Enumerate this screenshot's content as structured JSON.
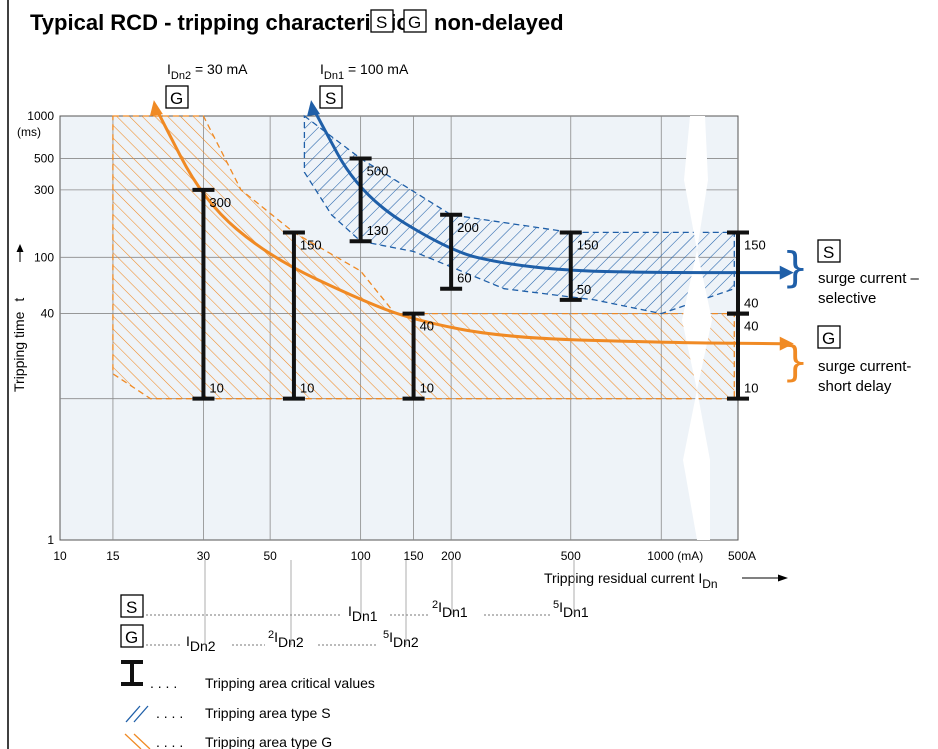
{
  "title": "Typical RCD - tripping characteristic",
  "title_boxes": [
    "S",
    "G"
  ],
  "title_suffix": "non-delayed",
  "colors": {
    "type_s": "#1f5fa8",
    "type_g": "#f08a24",
    "plot_bg": "#eef3f8",
    "bar": "#111111"
  },
  "chart_data": {
    "type": "line",
    "xlabel": "Tripping residual current I",
    "xlabel_sub": "Dn",
    "ylabel": "Tripping time",
    "ylabel_var": "t",
    "x_scale": "log",
    "y_scale": "log",
    "xlim": [
      10,
      1800
    ],
    "ylim": [
      1,
      1000
    ],
    "x_ticks": [
      {
        "v": 10,
        "label": "10"
      },
      {
        "v": 15,
        "label": "15"
      },
      {
        "v": 30,
        "label": "30"
      },
      {
        "v": 50,
        "label": "50"
      },
      {
        "v": 100,
        "label": "100"
      },
      {
        "v": 150,
        "label": "150"
      },
      {
        "v": 200,
        "label": "200"
      },
      {
        "v": 500,
        "label": "500"
      },
      {
        "v": 1000,
        "label": "1000 (mA)"
      },
      {
        "v": 1800,
        "label": "500A"
      }
    ],
    "y_ticks": [
      {
        "v": 1,
        "label": "1"
      },
      {
        "v": 10,
        "label": ""
      },
      {
        "v": 40,
        "label": "40"
      },
      {
        "v": 100,
        "label": "100"
      },
      {
        "v": 300,
        "label": "300"
      },
      {
        "v": 500,
        "label": "500"
      },
      {
        "v": 1000,
        "label": "1000"
      }
    ],
    "y_unit_label": "(ms)",
    "curves": [
      {
        "name": "I",
        "sub": "Dn2",
        "value_label": " = 30 mA",
        "box": "G",
        "color": "#f08a24",
        "points": [
          [
            21,
            1100
          ],
          [
            30,
            250
          ],
          [
            50,
            100
          ],
          [
            100,
            50
          ],
          [
            150,
            36
          ],
          [
            300,
            27
          ],
          [
            1000,
            25
          ],
          [
            2000,
            24.5
          ]
        ]
      },
      {
        "name": "I",
        "sub": "Dn1",
        "value_label": " = 100 mA",
        "box": "S",
        "color": "#1f5fa8",
        "points": [
          [
            70,
            1100
          ],
          [
            100,
            270
          ],
          [
            200,
            110
          ],
          [
            300,
            90
          ],
          [
            500,
            80
          ],
          [
            1000,
            78
          ],
          [
            2000,
            78
          ]
        ]
      }
    ],
    "critical_values": [
      {
        "x": 30,
        "lo": 10,
        "hi": 300,
        "lo_label": "10",
        "hi_label": "300"
      },
      {
        "x": 60,
        "lo": 10,
        "hi": 150,
        "lo_label": "10",
        "hi_label": "150"
      },
      {
        "x": 150,
        "lo": 10,
        "hi": 40,
        "lo_label": "10",
        "hi_label": "40"
      },
      {
        "x": 100,
        "lo": 130,
        "hi": 500,
        "lo_label": "130",
        "hi_label": "500"
      },
      {
        "x": 200,
        "lo": 60,
        "hi": 200,
        "lo_label": "60",
        "hi_label": "200"
      },
      {
        "x": 500,
        "lo": 50,
        "hi": 150,
        "lo_label": "50",
        "hi_label": "150"
      },
      {
        "x": 1800,
        "lo": 40,
        "hi": 150,
        "lo_label": "40",
        "hi_label": "150"
      },
      {
        "x": 1800,
        "lo": 10,
        "hi": 40,
        "lo_label": "10",
        "hi_label": "40"
      }
    ],
    "right_labels": [
      {
        "box": "S",
        "line1": "surge current –",
        "line2": "selective"
      },
      {
        "box": "G",
        "line1": "surge current-",
        "line2": "short delay"
      }
    ]
  },
  "multiples": {
    "s_row": {
      "box": "S",
      "items": [
        {
          "pre": "",
          "base": "I",
          "sub": "Dn1"
        },
        {
          "pre": "2",
          "base": "I",
          "sub": "Dn1"
        },
        {
          "pre": "5",
          "base": "I",
          "sub": "Dn1"
        }
      ]
    },
    "g_row": {
      "box": "G",
      "items": [
        {
          "pre": "",
          "base": "I",
          "sub": "Dn2"
        },
        {
          "pre": "2",
          "base": "I",
          "sub": "Dn2"
        },
        {
          "pre": "5",
          "base": "I",
          "sub": "Dn2"
        }
      ]
    }
  },
  "legend": {
    "dots": ". . . .",
    "items": [
      {
        "label": "Tripping area critical values"
      },
      {
        "label": "Tripping area type S"
      },
      {
        "label": "Tripping area type G"
      }
    ]
  }
}
